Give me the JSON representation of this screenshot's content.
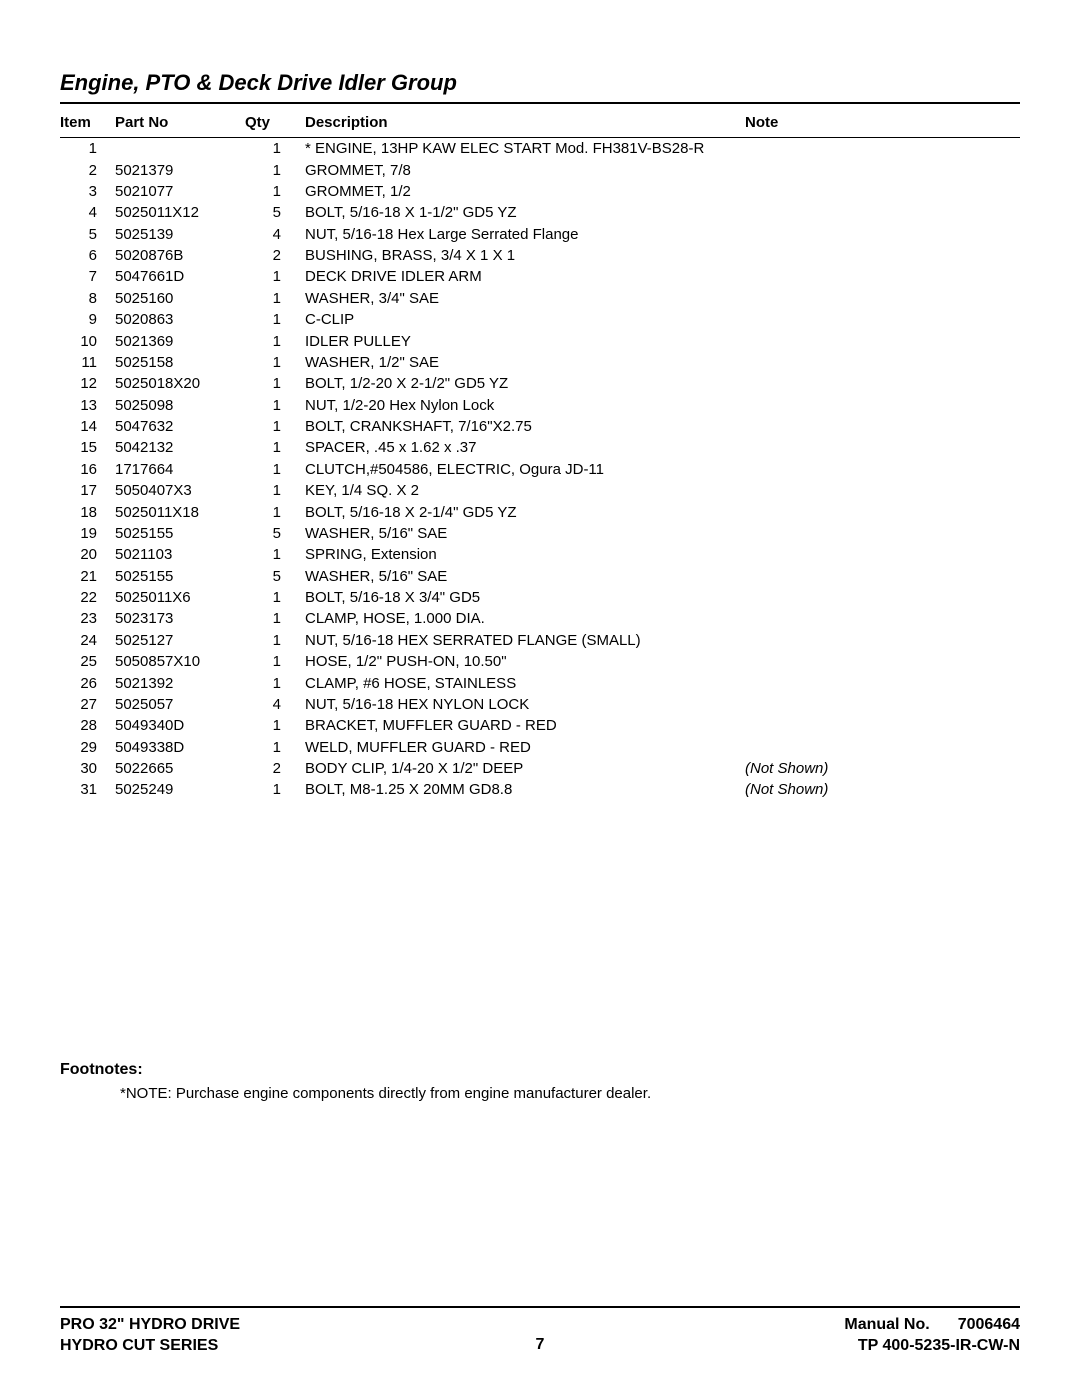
{
  "title": "Engine, PTO & Deck Drive Idler Group",
  "headers": {
    "item": "Item",
    "part": "Part No",
    "qty": "Qty",
    "desc": "Description",
    "note": "Note"
  },
  "rows": [
    {
      "item": "1",
      "part": "",
      "qty": "1",
      "desc": "* ENGINE, 13HP KAW ELEC START Mod. FH381V-BS28-R",
      "note": ""
    },
    {
      "item": "2",
      "part": "5021379",
      "qty": "1",
      "desc": "GROMMET, 7/8",
      "note": ""
    },
    {
      "item": "3",
      "part": "5021077",
      "qty": "1",
      "desc": "GROMMET, 1/2",
      "note": ""
    },
    {
      "item": "4",
      "part": "5025011X12",
      "qty": "5",
      "desc": "BOLT, 5/16-18 X 1-1/2\" GD5 YZ",
      "note": ""
    },
    {
      "item": "5",
      "part": "5025139",
      "qty": "4",
      "desc": "NUT, 5/16-18 Hex Large Serrated Flange",
      "note": ""
    },
    {
      "item": "6",
      "part": "5020876B",
      "qty": "2",
      "desc": "BUSHING, BRASS, 3/4 X 1 X 1",
      "note": ""
    },
    {
      "item": "7",
      "part": "5047661D",
      "qty": "1",
      "desc": "DECK DRIVE IDLER ARM",
      "note": ""
    },
    {
      "item": "8",
      "part": "5025160",
      "qty": "1",
      "desc": "WASHER, 3/4\" SAE",
      "note": ""
    },
    {
      "item": "9",
      "part": "5020863",
      "qty": "1",
      "desc": "C-CLIP",
      "note": ""
    },
    {
      "item": "10",
      "part": "5021369",
      "qty": "1",
      "desc": "IDLER PULLEY",
      "note": ""
    },
    {
      "item": "11",
      "part": "5025158",
      "qty": "1",
      "desc": "WASHER, 1/2\" SAE",
      "note": ""
    },
    {
      "item": "12",
      "part": "5025018X20",
      "qty": "1",
      "desc": "BOLT, 1/2-20 X 2-1/2\" GD5 YZ",
      "note": ""
    },
    {
      "item": "13",
      "part": "5025098",
      "qty": "1",
      "desc": "NUT, 1/2-20 Hex Nylon Lock",
      "note": ""
    },
    {
      "item": "14",
      "part": "5047632",
      "qty": "1",
      "desc": "BOLT, CRANKSHAFT, 7/16\"X2.75",
      "note": ""
    },
    {
      "item": "15",
      "part": "5042132",
      "qty": "1",
      "desc": "SPACER, .45 x 1.62 x .37",
      "note": ""
    },
    {
      "item": "16",
      "part": "1717664",
      "qty": "1",
      "desc": "CLUTCH,#504586, ELECTRIC, Ogura JD-11",
      "note": ""
    },
    {
      "item": "17",
      "part": "5050407X3",
      "qty": "1",
      "desc": "KEY, 1/4 SQ. X 2",
      "note": ""
    },
    {
      "item": "18",
      "part": "5025011X18",
      "qty": "1",
      "desc": "BOLT, 5/16-18 X 2-1/4\" GD5 YZ",
      "note": ""
    },
    {
      "item": "19",
      "part": "5025155",
      "qty": "5",
      "desc": "WASHER, 5/16\" SAE",
      "note": ""
    },
    {
      "item": "20",
      "part": "5021103",
      "qty": "1",
      "desc": "SPRING, Extension",
      "note": ""
    },
    {
      "item": "21",
      "part": "5025155",
      "qty": "5",
      "desc": "WASHER, 5/16\" SAE",
      "note": ""
    },
    {
      "item": "22",
      "part": "5025011X6",
      "qty": "1",
      "desc": "BOLT, 5/16-18 X 3/4\" GD5",
      "note": ""
    },
    {
      "item": "23",
      "part": "5023173",
      "qty": "1",
      "desc": "CLAMP, HOSE, 1.000 DIA.",
      "note": ""
    },
    {
      "item": "24",
      "part": "5025127",
      "qty": "1",
      "desc": "NUT, 5/16-18 HEX SERRATED FLANGE (SMALL)",
      "note": ""
    },
    {
      "item": "25",
      "part": "5050857X10",
      "qty": "1",
      "desc": "HOSE, 1/2\" PUSH-ON, 10.50\"",
      "note": ""
    },
    {
      "item": "26",
      "part": "5021392",
      "qty": "1",
      "desc": "CLAMP, #6 HOSE, STAINLESS",
      "note": ""
    },
    {
      "item": "27",
      "part": "5025057",
      "qty": "4",
      "desc": "NUT, 5/16-18 HEX NYLON LOCK",
      "note": ""
    },
    {
      "item": "28",
      "part": "5049340D",
      "qty": "1",
      "desc": "BRACKET, MUFFLER GUARD - RED",
      "note": ""
    },
    {
      "item": "29",
      "part": "5049338D",
      "qty": "1",
      "desc": "WELD, MUFFLER GUARD - RED",
      "note": ""
    },
    {
      "item": "30",
      "part": "5022665",
      "qty": "2",
      "desc": "BODY CLIP, 1/4-20 X 1/2\" DEEP",
      "note": "(Not Shown)"
    },
    {
      "item": "31",
      "part": "5025249",
      "qty": "1",
      "desc": "BOLT, M8-1.25 X 20MM GD8.8",
      "note": "(Not Shown)"
    }
  ],
  "footnotes": {
    "label": "Footnotes:",
    "lines": [
      "*NOTE: Purchase engine components directly from engine manufacturer dealer."
    ]
  },
  "footer": {
    "left1": "PRO 32\" HYDRO DRIVE",
    "left2": "HYDRO CUT SERIES",
    "right1_label": "Manual No.",
    "right1_value": "7006464",
    "right2": "TP 400-5235-IR-CW-N",
    "page_no": "7"
  }
}
